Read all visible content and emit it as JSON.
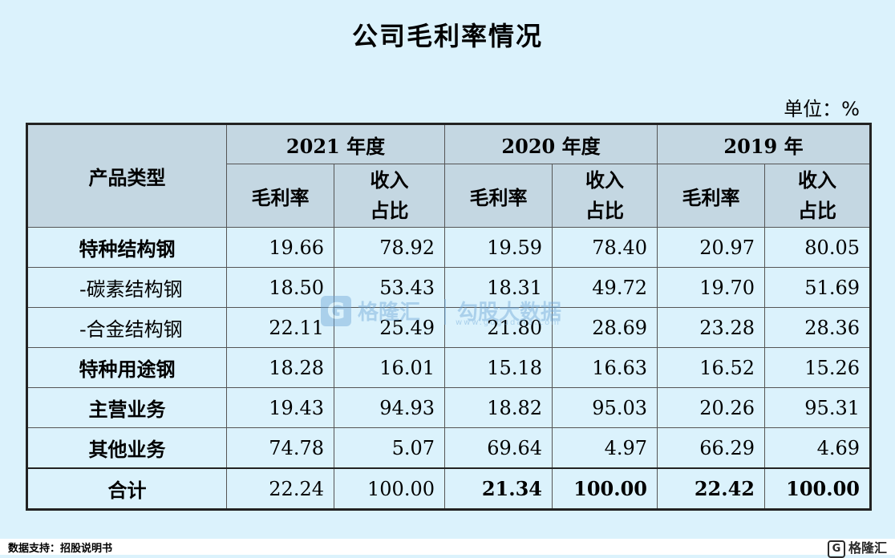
{
  "title": "公司毛利率情况",
  "unit_note": "单位：%",
  "table": {
    "row_header": "产品类型",
    "years": [
      "2021 年度",
      "2020 年度",
      "2019 年"
    ],
    "sub_headers": {
      "margin": "毛利率",
      "revenue_line1": "收入",
      "revenue_line2": "占比"
    },
    "rows": [
      {
        "name": "特种结构钢",
        "sub": false,
        "values": [
          "19.66",
          "78.92",
          "19.59",
          "78.40",
          "20.97",
          "80.05"
        ]
      },
      {
        "name": "-碳素结构钢",
        "sub": true,
        "values": [
          "18.50",
          "53.43",
          "18.31",
          "49.72",
          "19.70",
          "51.69"
        ]
      },
      {
        "name": "-合金结构钢",
        "sub": true,
        "values": [
          "22.11",
          "25.49",
          "21.80",
          "28.69",
          "23.28",
          "28.36"
        ]
      },
      {
        "name": "特种用途钢",
        "sub": false,
        "values": [
          "18.28",
          "16.01",
          "15.18",
          "16.63",
          "16.52",
          "15.26"
        ]
      },
      {
        "name": "主营业务",
        "sub": false,
        "values": [
          "19.43",
          "94.93",
          "18.82",
          "95.03",
          "20.26",
          "95.31"
        ]
      },
      {
        "name": "其他业务",
        "sub": false,
        "values": [
          "74.78",
          "5.07",
          "69.64",
          "4.97",
          "66.29",
          "4.69"
        ]
      },
      {
        "name": "合计",
        "sub": false,
        "values": [
          "22.24",
          "100.00",
          "21.34",
          "100.00",
          "22.42",
          "100.00"
        ]
      }
    ]
  },
  "watermark": {
    "logo_glyph": "G",
    "brand": "格隆汇",
    "tagline": "勾股大数据",
    "url": "www.gogudata.com"
  },
  "footer": {
    "source": "数据支持：招股说明书",
    "brand": "格隆汇",
    "brand_glyph": "G"
  }
}
